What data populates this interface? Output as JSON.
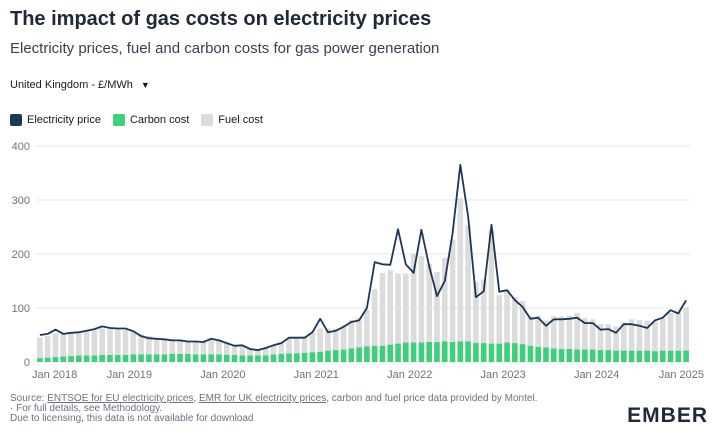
{
  "header": {
    "title": "The impact of gas costs on electricity prices",
    "subtitle": "Electricity prices, fuel and carbon costs for gas power generation"
  },
  "selector": {
    "value": "United Kingdom - £/MWh"
  },
  "colors": {
    "electricity": "#1d3557",
    "carbon": "#3ecf7a",
    "fuel": "#dcdcdc",
    "grid": "#e5e7eb",
    "axis_text": "#6b7280"
  },
  "footer": {
    "source_prefix": "Source:",
    "link1": "ENTSOE for EU electricity prices",
    "sep": ",",
    "link2": "EMR for UK electricity prices",
    "source_suffix": ", carbon and fuel price data provided by Montel.",
    "line2": "· For full details, see Methodology.",
    "line3": "Due to licensing, this data is not available for download"
  },
  "logo": {
    "text": "EMBER"
  },
  "chart_data": {
    "type": "bar+line",
    "title": "The impact of gas costs on electricity prices",
    "ylabel": "£/MWh",
    "ylim": [
      0,
      400
    ],
    "yticks": [
      0,
      100,
      200,
      300,
      400
    ],
    "xticks": [
      "Jan 2018",
      "Jan 2019",
      "Jan 2020",
      "Jan 2021",
      "Jan 2022",
      "Jan 2023",
      "Jan 2024",
      "Jan 2025"
    ],
    "x_start": "Jan 2018",
    "x_end": "Jan 2025",
    "legend": [
      "Electricity price",
      "Carbon cost",
      "Fuel cost"
    ],
    "legend_position": "top-left",
    "series": [
      {
        "name": "Electricity price",
        "type": "line",
        "values": [
          50,
          52,
          60,
          52,
          54,
          55,
          58,
          61,
          66,
          63,
          62,
          62,
          57,
          48,
          44,
          43,
          42,
          40,
          40,
          38,
          38,
          37,
          43,
          40,
          35,
          30,
          31,
          24,
          22,
          26,
          31,
          35,
          45,
          45,
          45,
          55,
          80,
          55,
          58,
          65,
          74,
          77,
          100,
          185,
          181,
          180,
          246,
          181,
          165,
          245,
          177,
          122,
          150,
          237,
          365,
          270,
          120,
          131,
          254,
          130,
          133,
          115,
          102,
          80,
          82,
          67,
          79,
          79,
          80,
          82,
          72,
          72,
          60,
          61,
          54,
          70,
          70,
          67,
          63,
          77,
          82,
          96,
          90,
          114
        ]
      },
      {
        "name": "Carbon cost",
        "type": "bar",
        "values": [
          7,
          8,
          9,
          10,
          11,
          12,
          12,
          12,
          13,
          13,
          13,
          13,
          14,
          14,
          14,
          14,
          14,
          15,
          15,
          15,
          14,
          14,
          14,
          14,
          13,
          13,
          12,
          12,
          12,
          12,
          14,
          15,
          16,
          16,
          17,
          18,
          19,
          21,
          22,
          23,
          25,
          27,
          29,
          30,
          30,
          32,
          34,
          36,
          36,
          36,
          37,
          37,
          38,
          37,
          38,
          38,
          35,
          35,
          34,
          34,
          36,
          35,
          33,
          30,
          28,
          27,
          25,
          24,
          24,
          23,
          23,
          23,
          22,
          22,
          21,
          21,
          21,
          21,
          21,
          20,
          21,
          21,
          21,
          21
        ]
      },
      {
        "name": "Fuel cost",
        "type": "bar",
        "values": [
          38,
          40,
          44,
          42,
          44,
          45,
          46,
          47,
          49,
          48,
          47,
          46,
          42,
          38,
          34,
          30,
          29,
          27,
          27,
          25,
          25,
          24,
          30,
          27,
          23,
          19,
          17,
          13,
          11,
          14,
          18,
          22,
          28,
          29,
          30,
          37,
          43,
          41,
          40,
          45,
          53,
          55,
          68,
          105,
          135,
          138,
          130,
          128,
          165,
          160,
          145,
          130,
          155,
          190,
          265,
          215,
          113,
          118,
          210,
          90,
          98,
          85,
          80,
          55,
          58,
          50,
          60,
          60,
          62,
          68,
          58,
          56,
          48,
          48,
          45,
          53,
          58,
          57,
          56,
          55,
          60,
          70,
          72,
          80
        ]
      }
    ]
  }
}
